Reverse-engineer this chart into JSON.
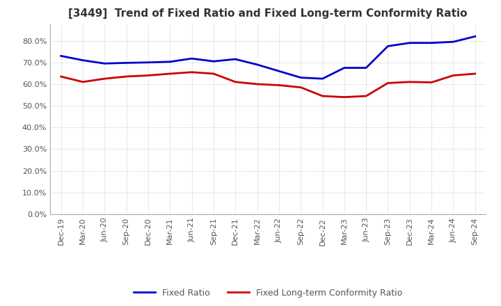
{
  "title": "[3449]  Trend of Fixed Ratio and Fixed Long-term Conformity Ratio",
  "x_labels": [
    "Dec-19",
    "Mar-20",
    "Jun-20",
    "Sep-20",
    "Dec-20",
    "Mar-21",
    "Jun-21",
    "Sep-21",
    "Dec-21",
    "Mar-22",
    "Jun-22",
    "Sep-22",
    "Dec-22",
    "Mar-23",
    "Jun-23",
    "Sep-23",
    "Dec-23",
    "Mar-24",
    "Jun-24",
    "Sep-24"
  ],
  "fixed_ratio": [
    0.73,
    0.71,
    0.695,
    0.698,
    0.7,
    0.703,
    0.718,
    0.705,
    0.715,
    0.69,
    0.66,
    0.63,
    0.625,
    0.675,
    0.675,
    0.775,
    0.79,
    0.79,
    0.795,
    0.82
  ],
  "fixed_lt_ratio": [
    0.635,
    0.61,
    0.625,
    0.635,
    0.64,
    0.648,
    0.655,
    0.648,
    0.61,
    0.6,
    0.595,
    0.585,
    0.545,
    0.54,
    0.545,
    0.605,
    0.61,
    0.608,
    0.64,
    0.648
  ],
  "fixed_ratio_color": "#0000cc",
  "fixed_lt_ratio_color": "#cc0000",
  "ylim": [
    0.0,
    0.875
  ],
  "yticks": [
    0.0,
    0.1,
    0.2,
    0.3,
    0.4,
    0.5,
    0.6,
    0.7,
    0.8
  ],
  "background_color": "#ffffff",
  "grid_color": "#aaaaaa",
  "legend_fixed_ratio": "Fixed Ratio",
  "legend_fixed_lt_ratio": "Fixed Long-term Conformity Ratio"
}
